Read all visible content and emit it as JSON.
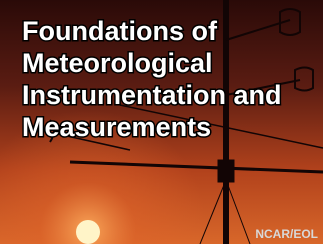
{
  "title_lines": [
    "Foundations of",
    "Meteorological",
    "Instrumentation and",
    "Measurements"
  ],
  "credit": "NCAR/EOL"
}
